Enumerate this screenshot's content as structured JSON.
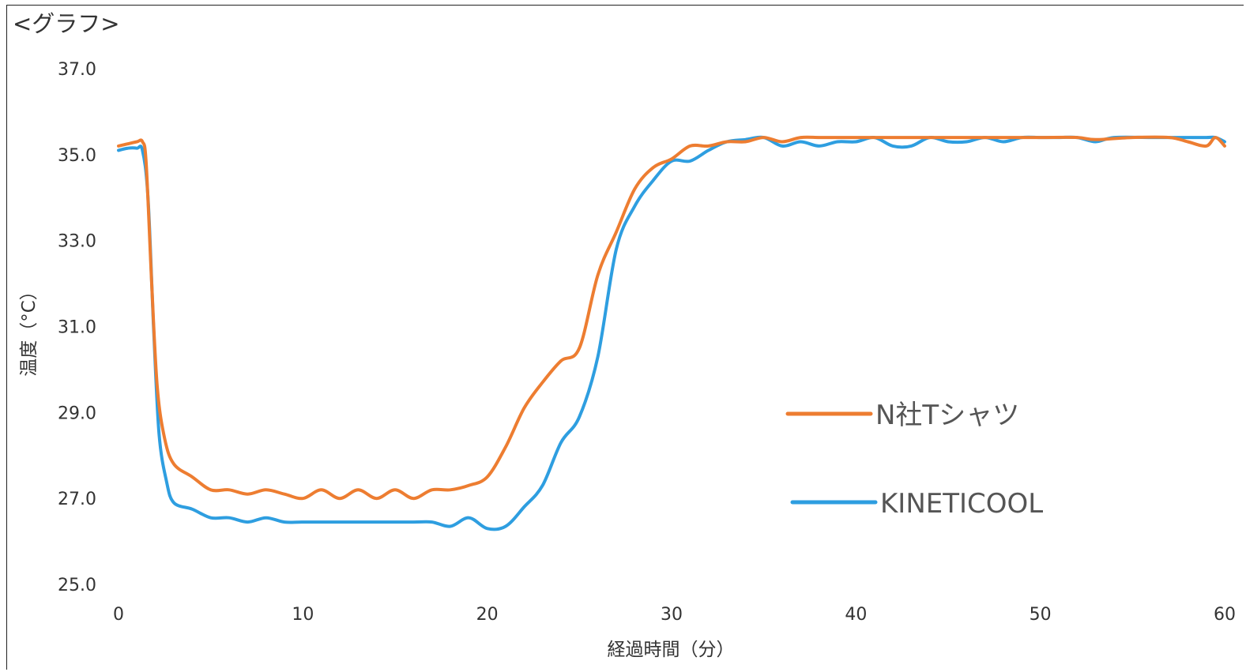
{
  "heading": "<グラフ>",
  "chart_data": {
    "type": "line",
    "xlabel": "経過時間（分）",
    "ylabel": "温度（°C）",
    "xlim": [
      0,
      60
    ],
    "ylim": [
      25.0,
      37.0
    ],
    "xticks": [
      0,
      10,
      20,
      30,
      40,
      50,
      60
    ],
    "yticks": [
      "37.0",
      "35.0",
      "33.0",
      "31.0",
      "29.0",
      "27.0",
      "25.0"
    ],
    "grid": false,
    "legend_position": "right-center",
    "series": [
      {
        "name": "N社Tシャツ",
        "color": "#ed7d31",
        "points": [
          [
            0,
            35.2
          ],
          [
            0.5,
            35.25
          ],
          [
            1,
            35.3
          ],
          [
            1.3,
            35.3
          ],
          [
            1.5,
            34.8
          ],
          [
            1.8,
            32.0
          ],
          [
            2.1,
            29.6
          ],
          [
            2.5,
            28.4
          ],
          [
            3,
            27.8
          ],
          [
            4,
            27.5
          ],
          [
            5,
            27.2
          ],
          [
            6,
            27.2
          ],
          [
            7,
            27.1
          ],
          [
            8,
            27.2
          ],
          [
            9,
            27.1
          ],
          [
            10,
            27.0
          ],
          [
            11,
            27.2
          ],
          [
            12,
            27.0
          ],
          [
            13,
            27.2
          ],
          [
            14,
            27.0
          ],
          [
            15,
            27.2
          ],
          [
            16,
            27.0
          ],
          [
            17,
            27.2
          ],
          [
            18,
            27.2
          ],
          [
            19,
            27.3
          ],
          [
            20,
            27.5
          ],
          [
            21,
            28.2
          ],
          [
            22,
            29.1
          ],
          [
            23,
            29.7
          ],
          [
            24,
            30.2
          ],
          [
            25,
            30.5
          ],
          [
            26,
            32.2
          ],
          [
            27,
            33.2
          ],
          [
            28,
            34.2
          ],
          [
            29,
            34.7
          ],
          [
            30,
            34.9
          ],
          [
            31,
            35.2
          ],
          [
            32,
            35.2
          ],
          [
            33,
            35.3
          ],
          [
            34,
            35.3
          ],
          [
            35,
            35.4
          ],
          [
            36,
            35.3
          ],
          [
            37,
            35.4
          ],
          [
            38,
            35.4
          ],
          [
            39,
            35.4
          ],
          [
            40,
            35.4
          ],
          [
            42,
            35.4
          ],
          [
            44,
            35.4
          ],
          [
            46,
            35.4
          ],
          [
            48,
            35.4
          ],
          [
            50,
            35.4
          ],
          [
            52,
            35.4
          ],
          [
            53,
            35.35
          ],
          [
            55,
            35.4
          ],
          [
            57,
            35.4
          ],
          [
            58,
            35.3
          ],
          [
            59,
            35.2
          ],
          [
            59.5,
            35.4
          ],
          [
            60,
            35.2
          ]
        ]
      },
      {
        "name": "KINETICOOL",
        "color": "#2e9ee0",
        "points": [
          [
            0,
            35.1
          ],
          [
            0.5,
            35.15
          ],
          [
            1,
            35.15
          ],
          [
            1.3,
            35.1
          ],
          [
            1.6,
            34.0
          ],
          [
            1.9,
            31.0
          ],
          [
            2.2,
            28.5
          ],
          [
            2.6,
            27.4
          ],
          [
            3,
            26.9
          ],
          [
            4,
            26.75
          ],
          [
            5,
            26.55
          ],
          [
            6,
            26.55
          ],
          [
            7,
            26.45
          ],
          [
            8,
            26.55
          ],
          [
            9,
            26.45
          ],
          [
            10,
            26.45
          ],
          [
            12,
            26.45
          ],
          [
            14,
            26.45
          ],
          [
            16,
            26.45
          ],
          [
            17,
            26.45
          ],
          [
            18,
            26.35
          ],
          [
            19,
            26.55
          ],
          [
            20,
            26.3
          ],
          [
            21,
            26.35
          ],
          [
            22,
            26.8
          ],
          [
            23,
            27.3
          ],
          [
            24,
            28.3
          ],
          [
            25,
            28.9
          ],
          [
            26,
            30.3
          ],
          [
            27,
            32.8
          ],
          [
            28,
            33.8
          ],
          [
            29,
            34.4
          ],
          [
            30,
            34.85
          ],
          [
            31,
            34.85
          ],
          [
            32,
            35.1
          ],
          [
            33,
            35.3
          ],
          [
            34,
            35.35
          ],
          [
            35,
            35.4
          ],
          [
            36,
            35.2
          ],
          [
            37,
            35.3
          ],
          [
            38,
            35.2
          ],
          [
            39,
            35.3
          ],
          [
            40,
            35.3
          ],
          [
            41,
            35.4
          ],
          [
            42,
            35.2
          ],
          [
            43,
            35.2
          ],
          [
            44,
            35.4
          ],
          [
            45,
            35.3
          ],
          [
            46,
            35.3
          ],
          [
            47,
            35.4
          ],
          [
            48,
            35.3
          ],
          [
            49,
            35.4
          ],
          [
            50,
            35.4
          ],
          [
            51,
            35.4
          ],
          [
            52,
            35.4
          ],
          [
            53,
            35.3
          ],
          [
            54,
            35.4
          ],
          [
            56,
            35.4
          ],
          [
            58,
            35.4
          ],
          [
            59,
            35.4
          ],
          [
            59.5,
            35.4
          ],
          [
            60,
            35.3
          ]
        ]
      }
    ]
  }
}
